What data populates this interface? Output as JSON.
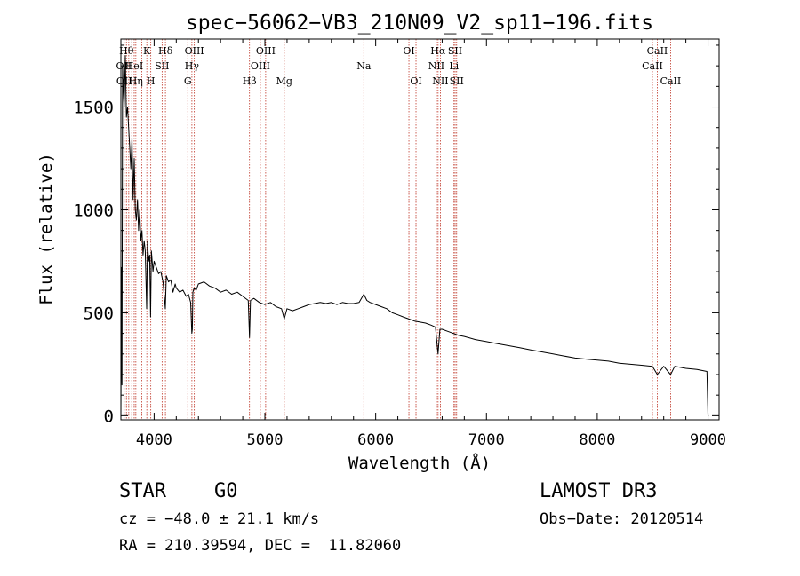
{
  "chart_data": {
    "type": "line",
    "title": "spec−56062−VB3_210N09_V2_sp11−196.fits",
    "xlabel": "Wavelength (Å)",
    "ylabel": "Flux (relative)",
    "xlim": [
      3700,
      9100
    ],
    "ylim": [
      -20,
      1830
    ],
    "xticks": [
      4000,
      5000,
      6000,
      7000,
      8000,
      9000
    ],
    "xtick_labels": [
      "4000",
      "5000",
      "6000",
      "7000",
      "8000",
      "9000"
    ],
    "yticks": [
      0,
      500,
      1000,
      1500
    ],
    "ytick_labels": [
      "0",
      "500",
      "1000",
      "1500"
    ],
    "series": [
      {
        "name": "spectrum",
        "x": [
          3700,
          3705,
          3710,
          3715,
          3720,
          3730,
          3740,
          3750,
          3760,
          3770,
          3780,
          3790,
          3800,
          3810,
          3820,
          3830,
          3840,
          3850,
          3860,
          3870,
          3880,
          3890,
          3900,
          3910,
          3920,
          3933,
          3940,
          3950,
          3960,
          3968,
          3975,
          3990,
          4000,
          4020,
          4040,
          4060,
          4080,
          4101,
          4110,
          4130,
          4150,
          4170,
          4190,
          4200,
          4230,
          4260,
          4290,
          4310,
          4330,
          4340,
          4345,
          4350,
          4360,
          4380,
          4400,
          4450,
          4500,
          4550,
          4600,
          4650,
          4700,
          4750,
          4800,
          4850,
          4861,
          4870,
          4900,
          4950,
          5000,
          5050,
          5100,
          5150,
          5175,
          5200,
          5250,
          5300,
          5350,
          5400,
          5450,
          5500,
          5550,
          5600,
          5650,
          5700,
          5750,
          5800,
          5850,
          5893,
          5920,
          5950,
          6000,
          6050,
          6100,
          6150,
          6200,
          6250,
          6300,
          6350,
          6400,
          6450,
          6500,
          6540,
          6563,
          6580,
          6600,
          6650,
          6700,
          6750,
          6800,
          6900,
          7000,
          7100,
          7200,
          7300,
          7400,
          7500,
          7600,
          7700,
          7800,
          7900,
          8000,
          8100,
          8200,
          8300,
          8400,
          8498,
          8542,
          8600,
          8662,
          8700,
          8800,
          8900,
          8990,
          9000,
          9005
        ],
        "values": [
          0,
          720,
          150,
          1700,
          1600,
          1500,
          1750,
          1450,
          1500,
          1400,
          1300,
          1200,
          1350,
          1050,
          1250,
          1000,
          950,
          1050,
          900,
          1000,
          850,
          900,
          780,
          850,
          800,
          520,
          850,
          750,
          780,
          480,
          800,
          700,
          750,
          720,
          690,
          700,
          650,
          520,
          680,
          650,
          660,
          600,
          640,
          620,
          600,
          610,
          580,
          590,
          550,
          400,
          420,
          600,
          620,
          610,
          640,
          650,
          630,
          620,
          600,
          610,
          590,
          600,
          580,
          560,
          380,
          560,
          570,
          550,
          540,
          550,
          530,
          520,
          470,
          520,
          510,
          520,
          530,
          540,
          545,
          550,
          545,
          550,
          540,
          550,
          545,
          545,
          550,
          590,
          560,
          550,
          540,
          530,
          520,
          500,
          490,
          480,
          470,
          460,
          455,
          450,
          440,
          430,
          300,
          420,
          420,
          410,
          400,
          390,
          385,
          370,
          360,
          350,
          340,
          330,
          320,
          310,
          300,
          290,
          280,
          275,
          270,
          265,
          255,
          250,
          245,
          240,
          200,
          240,
          200,
          240,
          230,
          225,
          215,
          0,
          0
        ]
      }
    ],
    "line_markers": [
      {
        "wavelength": 3727,
        "label": "OII",
        "row": 1
      },
      {
        "wavelength": 3730,
        "label": "OII",
        "row": 2
      },
      {
        "wavelength": 3750,
        "label": "Hθ",
        "row": 0
      },
      {
        "wavelength": 3771,
        "label": "",
        "row": 0
      },
      {
        "wavelength": 3798,
        "label": "",
        "row": 0
      },
      {
        "wavelength": 3820,
        "label": "HeI",
        "row": 1
      },
      {
        "wavelength": 3835,
        "label": "Hη",
        "row": 2
      },
      {
        "wavelength": 3889,
        "label": "",
        "row": 0
      },
      {
        "wavelength": 3934,
        "label": "K",
        "row": 0
      },
      {
        "wavelength": 3970,
        "label": "H",
        "row": 2
      },
      {
        "wavelength": 4072,
        "label": "SII",
        "row": 1
      },
      {
        "wavelength": 4102,
        "label": "Hδ",
        "row": 0
      },
      {
        "wavelength": 4304,
        "label": "G",
        "row": 2
      },
      {
        "wavelength": 4341,
        "label": "Hγ",
        "row": 1
      },
      {
        "wavelength": 4363,
        "label": "OIII",
        "row": 0
      },
      {
        "wavelength": 4861,
        "label": "Hβ",
        "row": 2
      },
      {
        "wavelength": 4959,
        "label": "OIII",
        "row": 1
      },
      {
        "wavelength": 5007,
        "label": "OIII",
        "row": 0
      },
      {
        "wavelength": 5175,
        "label": "Mg",
        "row": 2
      },
      {
        "wavelength": 5893,
        "label": "Na",
        "row": 1
      },
      {
        "wavelength": 6300,
        "label": "OI",
        "row": 0
      },
      {
        "wavelength": 6364,
        "label": "OI",
        "row": 2
      },
      {
        "wavelength": 6548,
        "label": "NII",
        "row": 1
      },
      {
        "wavelength": 6563,
        "label": "Hα",
        "row": 0
      },
      {
        "wavelength": 6584,
        "label": "NII",
        "row": 2
      },
      {
        "wavelength": 6707,
        "label": "Li",
        "row": 1
      },
      {
        "wavelength": 6717,
        "label": "SII",
        "row": 0
      },
      {
        "wavelength": 6731,
        "label": "SII",
        "row": 2
      },
      {
        "wavelength": 8498,
        "label": "CaII",
        "row": 1
      },
      {
        "wavelength": 8542,
        "label": "CaII",
        "row": 0
      },
      {
        "wavelength": 8662,
        "label": "CaII",
        "row": 2
      }
    ]
  },
  "info": {
    "class": "STAR",
    "subclass": "G0",
    "survey": "LAMOST DR3",
    "velocity": "cz = −48.0 ± 21.1 km/s",
    "obs_date": "Obs−Date: 20120514",
    "coords": "RA = 210.39594, DEC =  11.82060"
  },
  "colors": {
    "axis": "#000000",
    "spectrum": "#000000",
    "marker_line": "#c0392b"
  }
}
